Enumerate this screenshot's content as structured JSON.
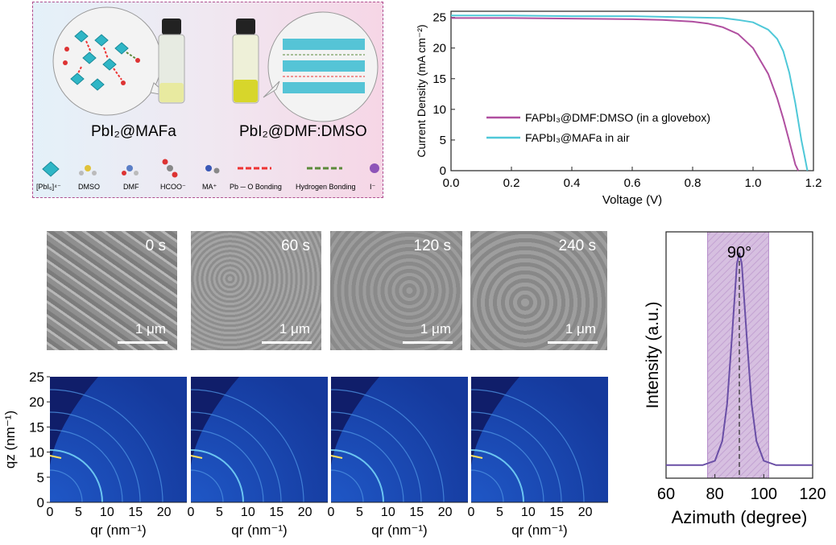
{
  "panel_a": {
    "label_left": "PbI₂@MAFa",
    "label_right": "PbI₂@DMF:DMSO",
    "legend": {
      "pbi6": "[PbI₆]⁴⁻",
      "dmso": "DMSO",
      "dmf": "DMF",
      "hcoo": "HCOO⁻",
      "ma": "MA⁺",
      "pbo": "Pb ─ O Bonding",
      "hbond": "Hydrogen Bonding",
      "iodide": "I⁻"
    }
  },
  "sem": {
    "times": [
      "0 s",
      "60 s",
      "120 s",
      "240 s"
    ],
    "scale": "1 μm"
  },
  "giwaxs": {
    "xlabel": "qr (nm⁻¹)",
    "ylabel": "qz (nm⁻¹)",
    "x_ticks": [
      "0",
      "5",
      "10",
      "15",
      "20"
    ],
    "y_ticks": [
      "0",
      "5",
      "10",
      "15",
      "20",
      "25"
    ]
  },
  "colors": {
    "glovebox": "#b04fa0",
    "air": "#4fc8d8",
    "azimuth": "#6a4fa6",
    "shade": "#d6bfe0"
  },
  "chart_data": [
    {
      "type": "line",
      "title": "",
      "xlabel": "Voltage (V)",
      "ylabel": "Current Density (mA cm⁻²)",
      "xlim": [
        0.0,
        1.2
      ],
      "ylim": [
        0,
        26
      ],
      "x_ticks": [
        "0.0",
        "0.2",
        "0.4",
        "0.6",
        "0.8",
        "1.0",
        "1.2"
      ],
      "y_ticks": [
        "0",
        "5",
        "10",
        "15",
        "20",
        "25"
      ],
      "legend_position": "center-right",
      "series": [
        {
          "name": "FAPbI₃@DMF:DMSO (in a glovebox)",
          "x": [
            0,
            0.2,
            0.4,
            0.6,
            0.7,
            0.8,
            0.85,
            0.9,
            0.95,
            1.0,
            1.05,
            1.08,
            1.1,
            1.12,
            1.14,
            1.15
          ],
          "y": [
            24.9,
            24.9,
            24.8,
            24.7,
            24.6,
            24.3,
            24.0,
            23.4,
            22.3,
            20.0,
            15.8,
            11.8,
            8.5,
            4.8,
            1.0,
            0
          ]
        },
        {
          "name": "FAPbI₃@MAFa in air",
          "x": [
            0,
            0.2,
            0.4,
            0.6,
            0.8,
            0.9,
            0.95,
            1.0,
            1.05,
            1.08,
            1.1,
            1.12,
            1.14,
            1.16,
            1.17,
            1.18
          ],
          "y": [
            25.3,
            25.3,
            25.2,
            25.2,
            25.0,
            24.9,
            24.6,
            24.2,
            23.0,
            21.5,
            19.5,
            16.0,
            11.0,
            5.0,
            2.5,
            0
          ]
        }
      ]
    },
    {
      "type": "line",
      "title": "",
      "xlabel": "Azimuth (degree)",
      "ylabel": "Intensity (a.u.)",
      "xlim": [
        60,
        120
      ],
      "x_ticks": [
        "60",
        "80",
        "100",
        "120"
      ],
      "annotation": "90°",
      "shaded_range": [
        77,
        102
      ],
      "peak_center": 90,
      "series": [
        {
          "x": [
            60,
            75,
            80,
            83,
            85,
            87,
            89,
            90,
            91,
            93,
            95,
            97,
            100,
            105,
            120
          ],
          "y": [
            0.03,
            0.03,
            0.05,
            0.14,
            0.31,
            0.62,
            0.95,
            1.0,
            0.95,
            0.62,
            0.31,
            0.14,
            0.05,
            0.03,
            0.03
          ]
        }
      ]
    }
  ]
}
